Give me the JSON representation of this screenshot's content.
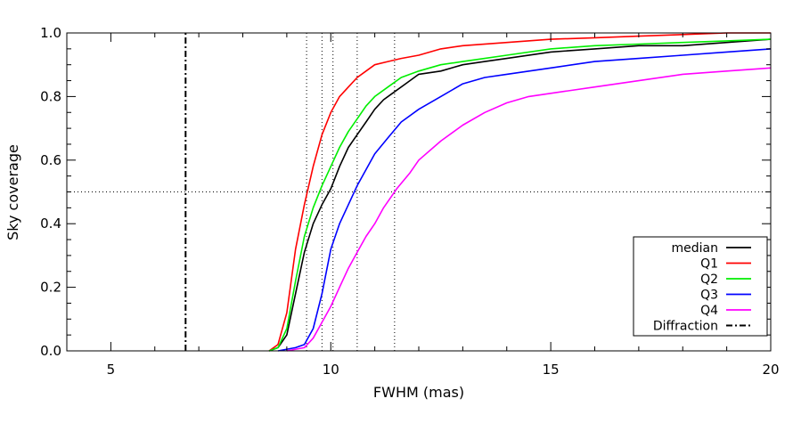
{
  "chart_data": {
    "type": "line",
    "title": "",
    "xlabel": "FWHM (mas)",
    "ylabel": "Sky coverage",
    "xlim": [
      4,
      20
    ],
    "ylim": [
      0,
      1.0
    ],
    "xticks": [
      5,
      10,
      15,
      20
    ],
    "yticks": [
      0.0,
      0.2,
      0.4,
      0.6,
      0.8,
      1.0
    ],
    "ytick_labels": [
      "0.0",
      "0.2",
      "0.4",
      "0.6",
      "0.8",
      "1.0"
    ],
    "legend_position": "bottom-right",
    "grid": false,
    "series": [
      {
        "name": "median",
        "color": "#000000",
        "dash": "solid",
        "x": [
          8.6,
          8.8,
          9.0,
          9.2,
          9.4,
          9.6,
          9.8,
          10.0,
          10.2,
          10.4,
          10.6,
          10.8,
          11.0,
          11.2,
          11.4,
          11.7,
          12.0,
          12.5,
          13.0,
          13.5,
          14.0,
          15.0,
          16.0,
          17.0,
          18.0,
          19.0,
          20.0
        ],
        "y": [
          0.0,
          0.01,
          0.05,
          0.18,
          0.31,
          0.4,
          0.46,
          0.51,
          0.58,
          0.64,
          0.68,
          0.72,
          0.76,
          0.79,
          0.81,
          0.84,
          0.87,
          0.88,
          0.9,
          0.91,
          0.92,
          0.94,
          0.95,
          0.96,
          0.96,
          0.97,
          0.98
        ]
      },
      {
        "name": "Q1",
        "color": "#ff0000",
        "dash": "solid",
        "x": [
          8.6,
          8.8,
          9.0,
          9.2,
          9.4,
          9.6,
          9.8,
          10.0,
          10.2,
          10.4,
          10.6,
          10.8,
          11.0,
          11.3,
          11.6,
          12.0,
          12.5,
          13.0,
          14.0,
          15.0,
          16.0,
          17.0,
          18.0,
          19.0,
          20.0
        ],
        "y": [
          0.0,
          0.02,
          0.12,
          0.32,
          0.46,
          0.58,
          0.68,
          0.75,
          0.8,
          0.83,
          0.86,
          0.88,
          0.9,
          0.91,
          0.92,
          0.93,
          0.95,
          0.96,
          0.97,
          0.98,
          0.985,
          0.99,
          0.995,
          1.0,
          1.0
        ]
      },
      {
        "name": "Q2",
        "color": "#00ee00",
        "dash": "solid",
        "x": [
          8.6,
          8.8,
          9.0,
          9.2,
          9.4,
          9.6,
          9.8,
          10.0,
          10.2,
          10.4,
          10.6,
          10.8,
          11.0,
          11.3,
          11.6,
          12.0,
          12.5,
          13.0,
          13.5,
          14.0,
          15.0,
          16.0,
          17.0,
          18.0,
          19.0,
          20.0
        ],
        "y": [
          0.0,
          0.01,
          0.07,
          0.22,
          0.36,
          0.45,
          0.52,
          0.58,
          0.64,
          0.69,
          0.73,
          0.77,
          0.8,
          0.83,
          0.86,
          0.88,
          0.9,
          0.91,
          0.92,
          0.93,
          0.95,
          0.96,
          0.965,
          0.97,
          0.975,
          0.98
        ]
      },
      {
        "name": "Q3",
        "color": "#0000ff",
        "dash": "solid",
        "x": [
          8.8,
          9.2,
          9.4,
          9.6,
          9.8,
          10.0,
          10.2,
          10.4,
          10.6,
          10.8,
          11.0,
          11.3,
          11.6,
          12.0,
          12.5,
          13.0,
          13.5,
          14.0,
          15.0,
          16.0,
          17.0,
          18.0,
          19.0,
          20.0
        ],
        "y": [
          0.0,
          0.01,
          0.02,
          0.07,
          0.18,
          0.32,
          0.4,
          0.46,
          0.52,
          0.57,
          0.62,
          0.67,
          0.72,
          0.76,
          0.8,
          0.84,
          0.86,
          0.87,
          0.89,
          0.91,
          0.92,
          0.93,
          0.94,
          0.95
        ]
      },
      {
        "name": "Q4",
        "color": "#ff00ff",
        "dash": "solid",
        "x": [
          9.0,
          9.4,
          9.6,
          9.8,
          10.0,
          10.2,
          10.4,
          10.6,
          10.8,
          11.0,
          11.2,
          11.5,
          11.8,
          12.0,
          12.5,
          13.0,
          13.5,
          14.0,
          14.5,
          15.0,
          16.0,
          17.0,
          18.0,
          19.0,
          20.0
        ],
        "y": [
          0.0,
          0.01,
          0.04,
          0.09,
          0.14,
          0.2,
          0.26,
          0.31,
          0.36,
          0.4,
          0.45,
          0.51,
          0.56,
          0.6,
          0.66,
          0.71,
          0.75,
          0.78,
          0.8,
          0.81,
          0.83,
          0.85,
          0.87,
          0.88,
          0.89
        ]
      },
      {
        "name": "Diffraction",
        "color": "#000000",
        "dash": "dashdot",
        "x": [
          6.7,
          6.7
        ],
        "y": [
          0.0,
          1.0
        ]
      }
    ],
    "reference_lines": {
      "horizontal": [
        {
          "y": 0.5,
          "style": "dotted",
          "color": "#000000"
        }
      ],
      "vertical": [
        {
          "x": 9.45,
          "style": "dotted",
          "color": "#000000"
        },
        {
          "x": 9.8,
          "style": "dotted",
          "color": "#000000"
        },
        {
          "x": 10.05,
          "style": "dotted",
          "color": "#000000"
        },
        {
          "x": 10.6,
          "style": "dotted",
          "color": "#000000"
        },
        {
          "x": 11.45,
          "style": "dotted",
          "color": "#000000"
        }
      ]
    },
    "legend": {
      "entries": [
        "median",
        "Q1",
        "Q2",
        "Q3",
        "Q4",
        "Diffraction"
      ]
    }
  }
}
